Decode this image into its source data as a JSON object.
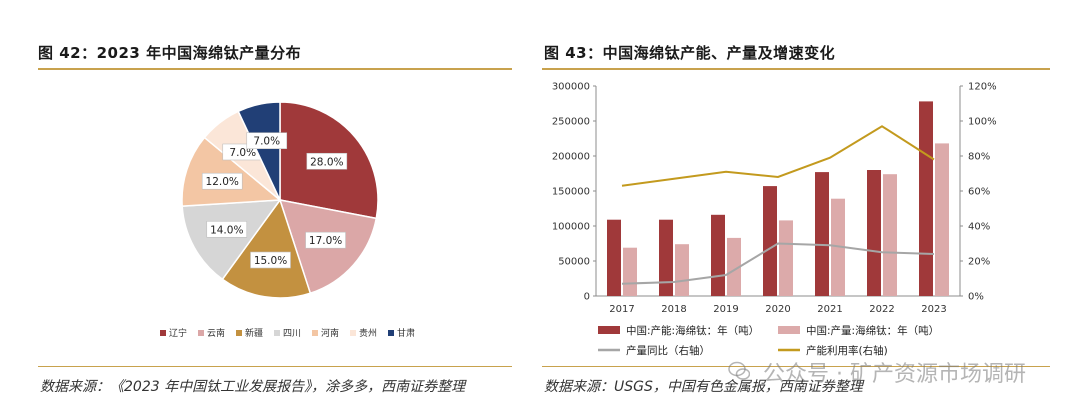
{
  "left": {
    "title": "图 42：2023 年中国海绵钛产量分布",
    "source": "数据来源：《2023 年中国钛工业发展报告》，涂多多，西南证券整理"
  },
  "right": {
    "title": "图 43：中国海绵钛产能、产量及增速变化",
    "source": "数据来源：USGS，中国有色金属报，西南证券整理"
  },
  "watermark": {
    "text": "公众号 · 矿产资源市场调研",
    "icon": "wechat-icon"
  },
  "chart_data": [
    {
      "type": "pie",
      "title": "",
      "legend_position": "bottom",
      "slices": [
        {
          "name": "辽宁",
          "value": 28.0,
          "label": "28.0%",
          "color": "#a0393a"
        },
        {
          "name": "云南",
          "value": 17.0,
          "label": "17.0%",
          "color": "#dba7a7"
        },
        {
          "name": "新疆",
          "value": 15.0,
          "label": "15.0%",
          "color": "#c39140"
        },
        {
          "name": "四川",
          "value": 14.0,
          "label": "14.0%",
          "color": "#d6d6d6"
        },
        {
          "name": "河南",
          "value": 12.0,
          "label": "12.0%",
          "color": "#f3c6a4"
        },
        {
          "name": "贵州",
          "value": 7.0,
          "label": "7.0%",
          "color": "#fbe6d8"
        },
        {
          "name": "甘肃",
          "value": 7.0,
          "label": "7.0%",
          "color": "#213f76"
        }
      ]
    },
    {
      "type": "bar",
      "title": "",
      "categories": [
        "2017",
        "2018",
        "2019",
        "2020",
        "2021",
        "2022",
        "2023"
      ],
      "legend_position": "bottom",
      "grid": false,
      "y_left": {
        "ylim": [
          0,
          300000
        ],
        "ticks": [
          "0",
          "50000",
          "100000",
          "150000",
          "200000",
          "250000",
          "300000"
        ]
      },
      "y_right": {
        "ylim": [
          0,
          120
        ],
        "ticks": [
          "0%",
          "20%",
          "40%",
          "60%",
          "80%",
          "100%",
          "120%"
        ]
      },
      "series": [
        {
          "name": "中国:产能:海绵钛：年（吨）",
          "kind": "bar",
          "axis": "left",
          "color": "#a0393a",
          "values": [
            109000,
            109000,
            116000,
            157000,
            177000,
            180000,
            278000
          ]
        },
        {
          "name": "中国:产量:海绵钛：年（吨）",
          "kind": "bar",
          "axis": "left",
          "color": "#dcaaaa",
          "values": [
            69000,
            74000,
            83000,
            108000,
            139000,
            174000,
            218000
          ]
        },
        {
          "name": "产量同比（右轴）",
          "kind": "line",
          "axis": "right",
          "color": "#a6a6a6",
          "values": [
            7,
            8,
            12,
            30,
            29,
            25,
            24
          ]
        },
        {
          "name": "产能利用率(右轴)",
          "kind": "line",
          "axis": "right",
          "color": "#c39a1e",
          "values": [
            63,
            67,
            71,
            68,
            79,
            97,
            78
          ]
        }
      ]
    }
  ]
}
